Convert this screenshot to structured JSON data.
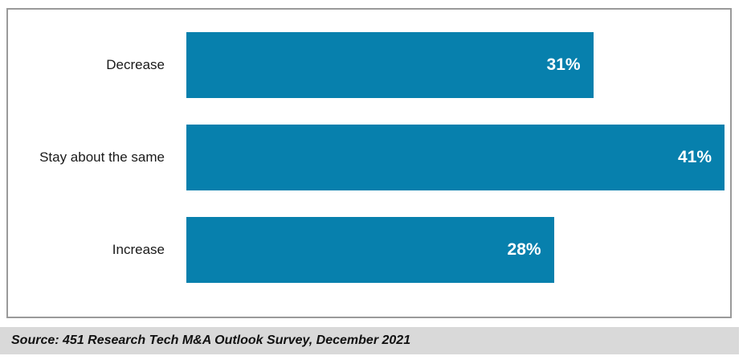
{
  "chart_data": {
    "type": "bar",
    "orientation": "horizontal",
    "categories": [
      "Decrease",
      "Stay about the same",
      "Increase"
    ],
    "values": [
      31,
      41,
      28
    ],
    "value_labels": [
      "31%",
      "41%",
      "28%"
    ],
    "title": "",
    "xlabel": "",
    "ylabel": "",
    "xlim": [
      0,
      41
    ],
    "grid": false,
    "legend": false,
    "axis_hidden": true,
    "bar_color": "#0780ad",
    "value_label_color": "#ffffff"
  },
  "source": {
    "text": "Source: 451 Research Tech M&A Outlook Survey, December 2021"
  },
  "colors": {
    "bar": "#0780ad",
    "frame_border": "#9a9a9a",
    "source_background": "#d9d9d9",
    "category_text": "#1a1a1a"
  }
}
